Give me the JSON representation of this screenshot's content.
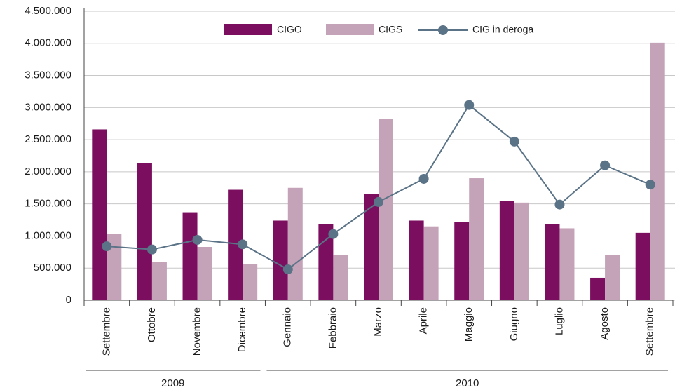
{
  "chart_data": {
    "type": "bar_line",
    "categories": [
      "Settembre",
      "Ottobre",
      "Novembre",
      "Dicembre",
      "Gennaio",
      "Febbraio",
      "Marzo",
      "Aprile",
      "Maggio",
      "Giugno",
      "Luglio",
      "Agosto",
      "Settembre"
    ],
    "category_groups": [
      "2009",
      "2009",
      "2009",
      "2009",
      "2010",
      "2010",
      "2010",
      "2010",
      "2010",
      "2010",
      "2010",
      "2010",
      "2010"
    ],
    "series": [
      {
        "name": "CIGO",
        "type": "bar",
        "color": "#7b0e5f",
        "values": [
          2660000,
          2130000,
          1370000,
          1720000,
          1240000,
          1190000,
          1650000,
          1240000,
          1220000,
          1540000,
          1190000,
          350000,
          1050000
        ]
      },
      {
        "name": "CIGS",
        "type": "bar",
        "color": "#c4a2b8",
        "values": [
          1030000,
          600000,
          830000,
          560000,
          1750000,
          710000,
          2820000,
          1150000,
          1900000,
          1520000,
          1120000,
          710000,
          4010000
        ]
      },
      {
        "name": "CIG in deroga",
        "type": "line",
        "color": "#5b7387",
        "values": [
          840000,
          790000,
          940000,
          870000,
          480000,
          1030000,
          1530000,
          1890000,
          3040000,
          2470000,
          1490000,
          2100000,
          1800000
        ]
      }
    ],
    "ylim": [
      0,
      4500000
    ],
    "yticks": [
      0,
      {
        "value": 500000,
        "label": "500.000"
      },
      {
        "value": 1000000,
        "label": "1.000.000"
      },
      {
        "value": 1500000,
        "label": "1.500.000"
      },
      {
        "value": 2000000,
        "label": "2.000.000"
      },
      {
        "value": 2500000,
        "label": "2.500.000"
      },
      {
        "value": 3000000,
        "label": "3.000.000"
      },
      {
        "value": 3500000,
        "label": "3.500.000"
      },
      {
        "value": 4000000,
        "label": "4.000.000"
      },
      {
        "value": 4500000,
        "label": "4.500.000"
      }
    ],
    "grid": true
  }
}
